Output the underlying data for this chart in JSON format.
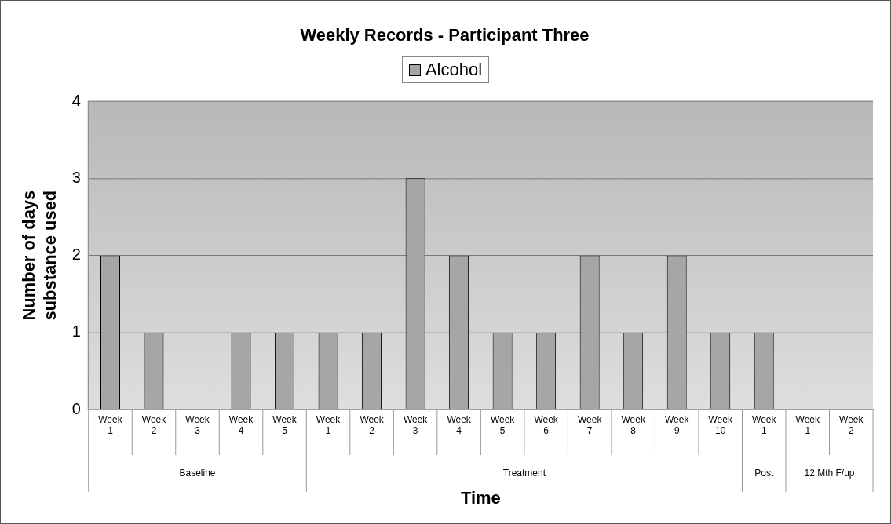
{
  "chart_data": {
    "type": "bar",
    "title": "Weekly Records - Participant Three",
    "xlabel": "Time",
    "ylabel": "Number of days\nsubstance used",
    "categories": [
      "Week 1",
      "Week 2",
      "Week 3",
      "Week 4",
      "Week 5",
      "Week 1",
      "Week 2",
      "Week 3",
      "Week 4",
      "Week 5",
      "Week 6",
      "Week 7",
      "Week 8",
      "Week 9",
      "Week 10",
      "Week 1",
      "Week 1",
      "Week 2"
    ],
    "series": [
      {
        "name": "Alcohol",
        "color": "#a6a6a6",
        "values": [
          2,
          1,
          0,
          1,
          1,
          1,
          1,
          3,
          2,
          1,
          1,
          2,
          1,
          2,
          1,
          1,
          0,
          0
        ]
      }
    ],
    "annotations": [
      "Baseline",
      "Treatment",
      "Post",
      "12 Mth F/up"
    ],
    "ylim": [
      0,
      4
    ],
    "yticks": [
      0,
      1,
      2,
      3,
      4
    ],
    "grid": "y",
    "legend": "top"
  }
}
